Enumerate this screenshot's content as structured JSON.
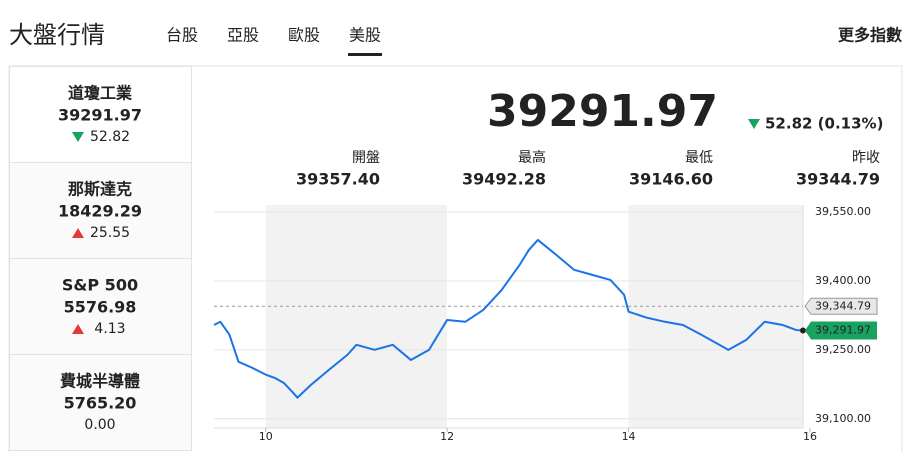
{
  "header": {
    "title": "大盤行情",
    "tabs": [
      "台股",
      "亞股",
      "歐股",
      "美股"
    ],
    "active_tab": 3,
    "more": "更多指數"
  },
  "selected": 0,
  "indices": [
    {
      "name": "道瓊工業",
      "value": "39291.97",
      "change": "52.82",
      "direction": "down"
    },
    {
      "name": "那斯達克",
      "value": "18429.29",
      "change": "25.55",
      "direction": "up"
    },
    {
      "name": "S&P 500",
      "value": "5576.98",
      "change": "4.13",
      "direction": "up"
    },
    {
      "name": "費城半導體",
      "value": "5765.20",
      "change": "0.00",
      "direction": "flat"
    }
  ],
  "quote": {
    "value": "39291.97",
    "change": "52.82 (0.13%)",
    "direction": "down",
    "stats": [
      {
        "label": "開盤",
        "value": "39357.40"
      },
      {
        "label": "最高",
        "value": "39492.28"
      },
      {
        "label": "最低",
        "value": "39146.60"
      },
      {
        "label": "昨收",
        "value": "39344.79"
      }
    ]
  },
  "chart_data": {
    "type": "line",
    "color": "#1a73e8",
    "x": [
      9.43,
      9.5,
      9.6,
      9.7,
      9.85,
      10.0,
      10.1,
      10.2,
      10.3,
      10.35,
      10.5,
      10.7,
      10.9,
      11.0,
      11.2,
      11.4,
      11.6,
      11.8,
      12.0,
      12.2,
      12.4,
      12.6,
      12.8,
      12.9,
      13.0,
      13.2,
      13.4,
      13.6,
      13.8,
      13.95,
      14.0,
      14.2,
      14.4,
      14.6,
      14.8,
      15.0,
      15.1,
      15.3,
      15.5,
      15.7,
      15.85,
      15.92
    ],
    "values": [
      39304,
      39311,
      39283,
      39224,
      39211,
      39196,
      39189,
      39178,
      39157,
      39146,
      39174,
      39207,
      39239,
      39261,
      39250,
      39261,
      39228,
      39250,
      39315,
      39311,
      39337,
      39380,
      39435,
      39467,
      39489,
      39457,
      39424,
      39413,
      39402,
      39370,
      39333,
      39320,
      39311,
      39304,
      39283,
      39261,
      39250,
      39272,
      39311,
      39304,
      39293,
      39292
    ],
    "xlim": [
      9.43,
      16
    ],
    "xticks": [
      10,
      12,
      14,
      16
    ],
    "ylim": [
      39080,
      39565
    ],
    "yticks": [
      {
        "value": 39100,
        "label": "39,100.00"
      },
      {
        "value": 39250,
        "label": "39,250.00"
      },
      {
        "value": 39400,
        "label": "39,400.00"
      },
      {
        "value": 39550,
        "label": "39,550.00"
      }
    ],
    "grid": true,
    "reference": {
      "value": 39344.79,
      "label": "39,344.79"
    },
    "last": {
      "value": 39291.97,
      "label": "39,291.97"
    }
  }
}
